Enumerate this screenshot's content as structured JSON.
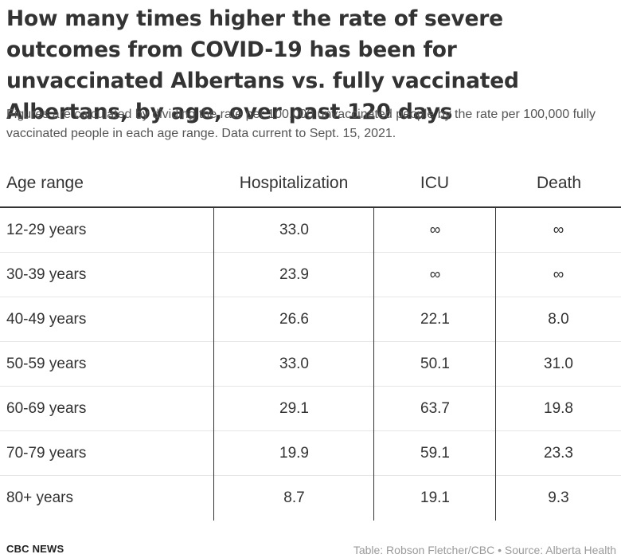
{
  "chart_data": {
    "type": "table",
    "title": "How many times higher the rate of severe outcomes from COVID-19 has been for unvaccinated Albertans vs. fully vaccinated Albertans, by age, over past 120 days",
    "subtitle": "Figures are calculated by dividing the rate per 100,000 unvaccinated people by the rate per 100,000 fully vaccinated people in each age range. Data current to Sept. 15, 2021.",
    "columns": [
      "Age range",
      "Hospitalization",
      "ICU",
      "Death"
    ],
    "rows": [
      [
        "12-29 years",
        "33.0",
        "∞",
        "∞"
      ],
      [
        "30-39 years",
        "23.9",
        "∞",
        "∞"
      ],
      [
        "40-49 years",
        "26.6",
        "22.1",
        "8.0"
      ],
      [
        "50-59 years",
        "33.0",
        "50.1",
        "31.0"
      ],
      [
        "60-69 years",
        "29.1",
        "63.7",
        "19.8"
      ],
      [
        "70-79 years",
        "19.9",
        "59.1",
        "23.3"
      ],
      [
        "80+ years",
        "8.7",
        "19.1",
        "9.3"
      ]
    ]
  },
  "footer": {
    "brand": "CBC NEWS",
    "credit": "Table: Robson Fletcher/CBC • Source: Alberta Health"
  },
  "colors": {
    "text": "#333333",
    "divider": "#333333",
    "row_separator": "#e6e6e6",
    "credit": "#9a9a9a"
  }
}
